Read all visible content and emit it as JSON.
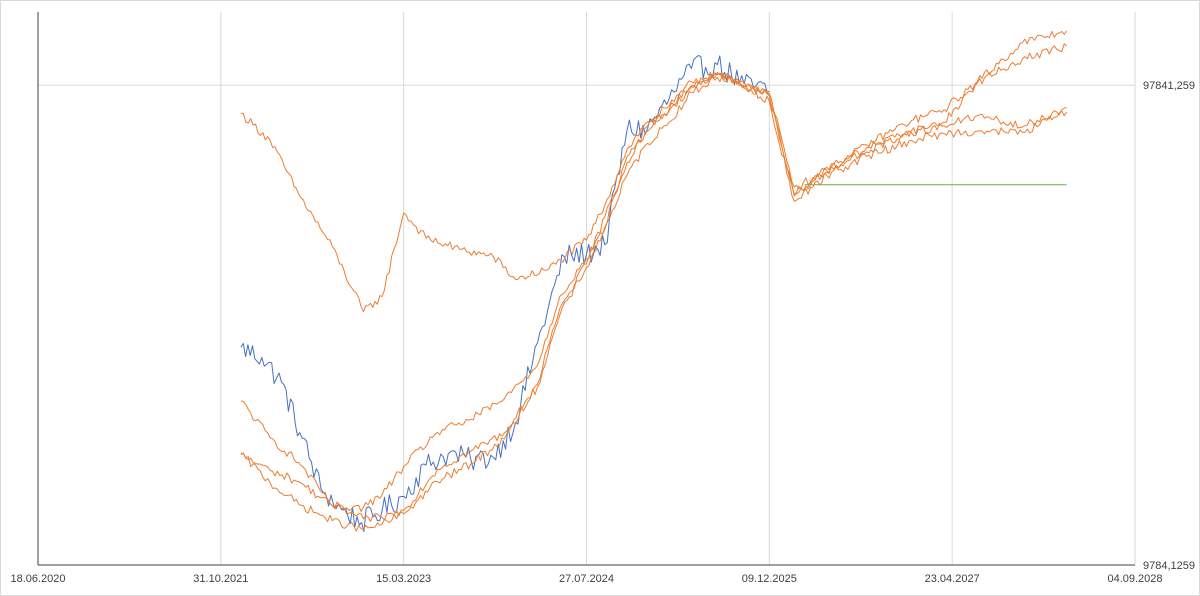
{
  "chart_data": {
    "type": "line",
    "title": "",
    "xlabel": "",
    "ylabel": "",
    "x_tick_labels": [
      "18.06.2020",
      "31.10.2021",
      "15.03.2023",
      "27.07.2024",
      "09.12.2025",
      "23.04.2027",
      "04.09.2028"
    ],
    "x_range": [
      "18.06.2020",
      "04.09.2028"
    ],
    "y_tick_labels": [
      "97841,259",
      "9784,1259"
    ],
    "y_scale": "log",
    "ylim": [
      9784.1259,
      139000
    ],
    "grid": {
      "vertical": true,
      "horizontal": true
    },
    "legend": "none",
    "colors": {
      "history": "#4472c4",
      "paths": "#ed7d31",
      "level": "#70ad47",
      "grid": "#d9d9d9",
      "axis": "#404040"
    },
    "series": [
      {
        "points": [
          [
            "25.12.2021",
            27800
          ],
          [
            "20.02.2022",
            26500
          ],
          [
            "15.04.2022",
            23500
          ],
          [
            "10.06.2022",
            18000
          ],
          [
            "01.08.2022",
            14100
          ],
          [
            "25.09.2022",
            12800
          ],
          [
            "20.11.2022",
            12000
          ],
          [
            "15.01.2023",
            12700
          ],
          [
            "15.03.2023",
            13600
          ],
          [
            "15.05.2023",
            15800
          ],
          [
            "15.07.2023",
            16700
          ],
          [
            "15.09.2023",
            16200
          ],
          [
            "15.11.2023",
            16400
          ],
          [
            "15.01.2024",
            19400
          ],
          [
            "15.03.2024",
            28400
          ],
          [
            "27.05.2024",
            43000
          ],
          [
            "27.07.2024",
            43500
          ],
          [
            "15.09.2024",
            45500
          ],
          [
            "15.11.2024",
            79000
          ],
          [
            "10.01.2025",
            79500
          ],
          [
            "10.03.2025",
            91500
          ],
          [
            "10.05.2025",
            106000
          ],
          [
            "20.07.2025",
            108000
          ],
          [
            "01.10.2025",
            98500
          ],
          [
            "09.12.2025",
            95000
          ]
        ]
      },
      {
        "points": [
          [
            "25.12.2021",
            85500
          ],
          [
            "15.03.2022",
            75000
          ],
          [
            "01.06.2022",
            58000
          ],
          [
            "01.09.2022",
            45000
          ],
          [
            "25.11.2022",
            33000
          ],
          [
            "15.01.2023",
            35500
          ],
          [
            "15.03.2023",
            53000
          ],
          [
            "15.05.2023",
            47000
          ],
          [
            "15.08.2023",
            44500
          ],
          [
            "15.11.2023",
            43000
          ],
          [
            "15.01.2024",
            38500
          ],
          [
            "15.04.2024",
            40500
          ],
          [
            "27.07.2024",
            46500
          ],
          [
            "15.09.2024",
            55000
          ],
          [
            "15.11.2024",
            72000
          ],
          [
            "10.01.2025",
            82000
          ],
          [
            "10.03.2025",
            88500
          ],
          [
            "10.05.2025",
            97500
          ],
          [
            "20.07.2025",
            103000
          ],
          [
            "01.10.2025",
            96500
          ],
          [
            "09.12.2025",
            94000
          ],
          [
            "15.02.2026",
            60000
          ],
          [
            "15.05.2026",
            64500
          ],
          [
            "01.09.2026",
            73500
          ],
          [
            "01.01.2027",
            82500
          ],
          [
            "01.04.2027",
            87000
          ],
          [
            "01.07.2027",
            99500
          ],
          [
            "01.11.2027",
            120000
          ],
          [
            "01.03.2028",
            127000
          ]
        ]
      },
      {
        "points": [
          [
            "25.12.2021",
            21500
          ],
          [
            "15.03.2022",
            18000
          ],
          [
            "01.06.2022",
            16000
          ],
          [
            "01.09.2022",
            13000
          ],
          [
            "25.11.2022",
            12200
          ],
          [
            "15.01.2023",
            12300
          ],
          [
            "15.03.2023",
            12700
          ],
          [
            "15.06.2023",
            15500
          ],
          [
            "15.09.2023",
            16900
          ],
          [
            "15.12.2023",
            18400
          ],
          [
            "15.03.2024",
            23000
          ],
          [
            "15.05.2024",
            32500
          ],
          [
            "27.07.2024",
            40800
          ],
          [
            "15.09.2024",
            49000
          ],
          [
            "15.11.2024",
            63500
          ],
          [
            "10.01.2025",
            74000
          ],
          [
            "10.03.2025",
            82000
          ],
          [
            "10.05.2025",
            94500
          ],
          [
            "20.07.2025",
            101500
          ],
          [
            "01.10.2025",
            99500
          ],
          [
            "09.12.2025",
            93000
          ],
          [
            "15.02.2026",
            57500
          ],
          [
            "15.05.2026",
            65000
          ],
          [
            "01.09.2026",
            71000
          ],
          [
            "01.01.2027",
            78500
          ],
          [
            "01.04.2027",
            82000
          ],
          [
            "01.07.2027",
            99000
          ],
          [
            "01.11.2027",
            111000
          ],
          [
            "01.03.2028",
            118000
          ]
        ]
      },
      {
        "points": [
          [
            "25.12.2021",
            16700
          ],
          [
            "15.03.2022",
            14500
          ],
          [
            "01.06.2022",
            13100
          ],
          [
            "01.09.2022",
            12100
          ],
          [
            "25.11.2022",
            11600
          ],
          [
            "15.01.2023",
            11900
          ],
          [
            "15.03.2023",
            12500
          ],
          [
            "15.06.2023",
            14600
          ],
          [
            "15.09.2023",
            15900
          ],
          [
            "15.12.2023",
            17900
          ],
          [
            "15.03.2024",
            23300
          ],
          [
            "15.05.2024",
            33500
          ],
          [
            "27.07.2024",
            41500
          ],
          [
            "15.09.2024",
            52000
          ],
          [
            "15.11.2024",
            67500
          ],
          [
            "10.01.2025",
            80500
          ],
          [
            "10.03.2025",
            86500
          ],
          [
            "10.05.2025",
            97000
          ],
          [
            "20.07.2025",
            104000
          ],
          [
            "01.10.2025",
            97000
          ],
          [
            "09.12.2025",
            93500
          ],
          [
            "15.02.2026",
            58000
          ],
          [
            "15.05.2026",
            66000
          ],
          [
            "01.09.2026",
            72500
          ],
          [
            "01.01.2027",
            78000
          ],
          [
            "01.04.2027",
            80500
          ],
          [
            "01.07.2027",
            84500
          ],
          [
            "01.11.2027",
            80000
          ],
          [
            "01.03.2028",
            88000
          ]
        ]
      },
      {
        "points": [
          [
            "25.12.2021",
            16600
          ],
          [
            "15.03.2022",
            15400
          ],
          [
            "01.06.2022",
            14600
          ],
          [
            "01.09.2022",
            13000
          ],
          [
            "25.11.2022",
            12900
          ],
          [
            "15.01.2023",
            13700
          ],
          [
            "15.03.2023",
            15700
          ],
          [
            "15.06.2023",
            18500
          ],
          [
            "15.09.2023",
            19700
          ],
          [
            "15.12.2023",
            21700
          ],
          [
            "15.03.2024",
            25500
          ],
          [
            "15.05.2024",
            35500
          ],
          [
            "27.07.2024",
            42500
          ],
          [
            "15.09.2024",
            49500
          ],
          [
            "15.11.2024",
            69500
          ],
          [
            "10.01.2025",
            78500
          ],
          [
            "10.03.2025",
            87000
          ],
          [
            "10.05.2025",
            99500
          ],
          [
            "20.07.2025",
            103000
          ],
          [
            "01.10.2025",
            97500
          ],
          [
            "09.12.2025",
            90500
          ],
          [
            "15.02.2026",
            56000
          ],
          [
            "15.05.2026",
            63500
          ],
          [
            "01.09.2026",
            69500
          ],
          [
            "01.01.2027",
            75000
          ],
          [
            "01.04.2027",
            77500
          ],
          [
            "01.07.2027",
            78500
          ],
          [
            "01.11.2027",
            78000
          ],
          [
            "01.03.2028",
            86000
          ]
        ]
      },
      {
        "points": [
          [
            "15.03.2026",
            60700
          ],
          [
            "01.03.2028",
            60700
          ]
        ]
      }
    ]
  }
}
